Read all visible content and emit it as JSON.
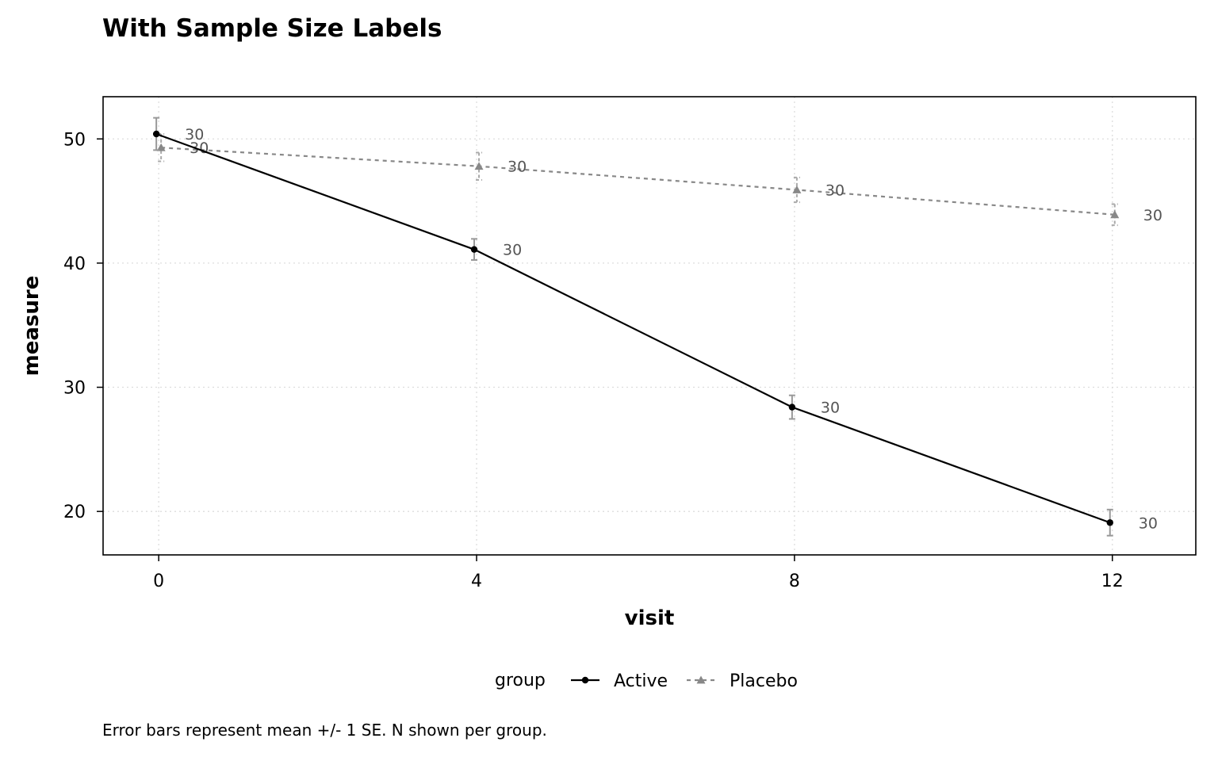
{
  "chart_data": {
    "type": "line",
    "title": "With Sample Size Labels",
    "xlabel": "visit",
    "ylabel": "measure",
    "caption": "Error bars represent mean +/- 1 SE. N shown per group.",
    "x": [
      0,
      4,
      8,
      12
    ],
    "xticks": [
      0,
      4,
      8,
      12
    ],
    "yticks": [
      20,
      30,
      40,
      50
    ],
    "xlim": [
      -0.7,
      13.05
    ],
    "ylim": [
      16.5,
      53.4
    ],
    "grid": true,
    "legend": {
      "title": "group",
      "position": "bottom"
    },
    "series": [
      {
        "name": "Active",
        "values": [
          50.4,
          41.1,
          28.4,
          19.1
        ],
        "se": [
          1.3,
          0.85,
          0.95,
          1.05
        ],
        "n": [
          "30",
          "30",
          "30",
          "30"
        ],
        "color": "#000000",
        "errorbar_color": "#999999",
        "n_label_color": "#555555",
        "line_style": "solid",
        "marker": "circle",
        "x_offset": -0.03
      },
      {
        "name": "Placebo",
        "values": [
          49.3,
          47.8,
          45.9,
          43.9
        ],
        "se": [
          1.1,
          1.1,
          1.0,
          0.85
        ],
        "n": [
          "30",
          "30",
          "30",
          "30"
        ],
        "color": "#888888",
        "errorbar_color": "#aaaaaa",
        "n_label_color": "#555555",
        "line_style": "dotted",
        "marker": "triangle",
        "x_offset": 0.03
      }
    ]
  }
}
